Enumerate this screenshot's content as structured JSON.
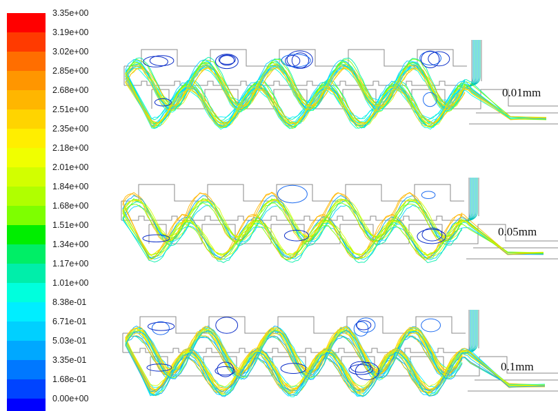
{
  "colorbar": {
    "labels": [
      "3.35e+00",
      "3.19e+00",
      "3.02e+00",
      "2.85e+00",
      "2.68e+00",
      "2.51e+00",
      "2.35e+00",
      "2.18e+00",
      "2.01e+00",
      "1.84e+00",
      "1.68e+00",
      "1.51e+00",
      "1.34e+00",
      "1.17e+00",
      "1.01e+00",
      "8.38e-01",
      "6.71e-01",
      "5.03e-01",
      "3.35e-01",
      "1.68e-01",
      "0.00e+00"
    ],
    "colors": [
      "#ff0000",
      "#ff3a00",
      "#ff6e00",
      "#ff9600",
      "#ffb600",
      "#ffd400",
      "#ffee00",
      "#f0ff00",
      "#d2ff00",
      "#b0ff00",
      "#7eff00",
      "#00ee00",
      "#00ee66",
      "#00eeaa",
      "#00ffdd",
      "#00eeff",
      "#00d0ff",
      "#00a8ff",
      "#0078ff",
      "#0044ff",
      "#0000ff"
    ]
  },
  "panels": [
    {
      "label": "0.01mm"
    },
    {
      "label": "0.05mm"
    },
    {
      "label": "0.1mm"
    }
  ]
}
